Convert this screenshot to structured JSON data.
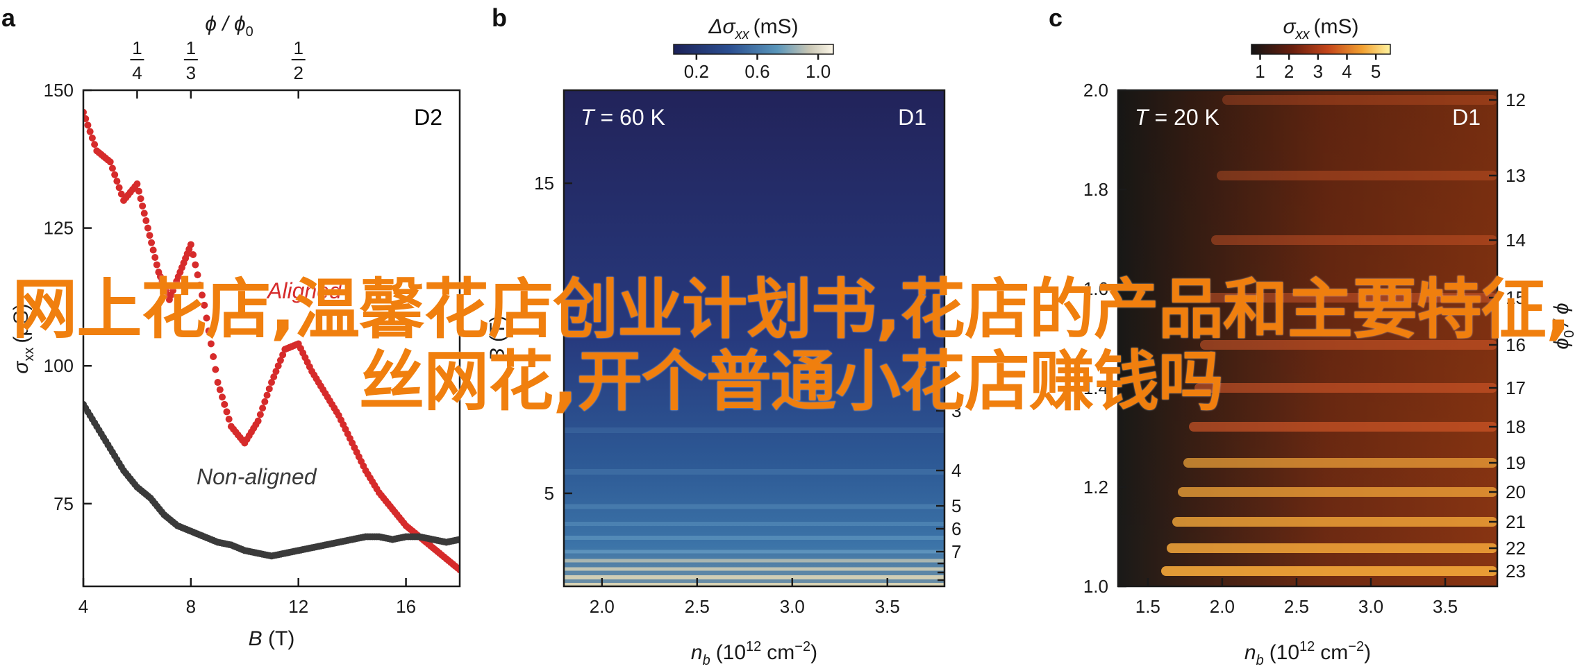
{
  "overlay_text": "网上花店,温馨花店创业计划书,花店的产品和主要特征,丝网花,开个普通小花店赚钱吗",
  "colors": {
    "aligned": "#d62b2b",
    "non_aligned": "#3a3a3a",
    "overlay": "#f07f0e"
  },
  "chart_data": [
    {
      "panel": "a",
      "type": "scatter",
      "inset_label": "D2",
      "xlabel_sym": "B",
      "xlabel_unit": "(T)",
      "ylabel_sym": "σ",
      "ylabel_sub": "xx",
      "ylabel_unit": "(μS)",
      "top_label": "ϕ / ϕ",
      "top_label_sub": "0",
      "xlim": [
        4,
        18
      ],
      "ylim": [
        60,
        150
      ],
      "xticks": [
        4,
        8,
        12,
        16
      ],
      "yticks": [
        75,
        100,
        125,
        150
      ],
      "top_ticks": [
        {
          "num": "1",
          "den": "4",
          "x": 6.0
        },
        {
          "num": "1",
          "den": "3",
          "x": 8.0
        },
        {
          "num": "1",
          "den": "2",
          "x": 12.0
        }
      ],
      "series": [
        {
          "name": "Aligned",
          "x": [
            4.0,
            4.5,
            5.0,
            5.5,
            6.0,
            6.4,
            6.8,
            7.2,
            7.6,
            8.0,
            8.5,
            9.0,
            9.5,
            10.0,
            10.5,
            11.0,
            11.5,
            12.0,
            12.5,
            13.0,
            13.5,
            14.0,
            14.5,
            15.0,
            15.5,
            16.0,
            16.5,
            17.0,
            17.5,
            18.0
          ],
          "y": [
            146,
            139,
            137,
            130,
            133,
            125,
            117,
            112,
            117,
            122,
            111,
            97,
            89,
            86,
            90,
            97,
            103,
            104,
            99,
            95,
            91,
            86,
            81,
            77,
            74,
            71,
            69,
            67,
            65,
            63
          ]
        },
        {
          "name": "Non-aligned",
          "x": [
            4.0,
            4.5,
            5.0,
            5.5,
            6.0,
            6.5,
            7.0,
            7.5,
            8.0,
            8.5,
            9.0,
            9.5,
            10.0,
            10.5,
            11.0,
            11.5,
            12.0,
            12.5,
            13.0,
            13.5,
            14.0,
            14.5,
            15.0,
            15.5,
            16.0,
            16.5,
            17.0,
            17.5,
            18.0
          ],
          "y": [
            93,
            89,
            85,
            81,
            78,
            76,
            73,
            71,
            70,
            69,
            68,
            67.5,
            66.5,
            66,
            65.5,
            66,
            66.5,
            67,
            67.5,
            68,
            68.5,
            69,
            69,
            68.5,
            69,
            69,
            68.5,
            68,
            68.5
          ]
        }
      ]
    },
    {
      "panel": "b",
      "type": "heatmap",
      "inset_label": "D1",
      "temperature_sym": "T",
      "temperature_text": "= 60 K",
      "xlabel_sym": "n",
      "xlabel_sub": "b",
      "xlabel_unit": "(10",
      "xlabel_exp": "12",
      "xlabel_unit2": "cm",
      "xlabel_exp2": "−2",
      "xlabel_close": ")",
      "ylabel_sym": "B",
      "ylabel_unit": "(T)",
      "xlim": [
        1.8,
        3.8
      ],
      "ylim": [
        2,
        18
      ],
      "xticks": [
        2.0,
        2.5,
        3.0,
        3.5
      ],
      "yticks": [
        5,
        15
      ],
      "right_ticks": [
        "3",
        "4",
        "5",
        "6",
        "7"
      ],
      "colorbar_label": "Δσ",
      "colorbar_sub": "xx",
      "colorbar_unit": "(mS)",
      "colorbar_ticks": [
        0.2,
        0.6,
        1.0
      ],
      "colorbar_range": [
        0.05,
        1.1
      ]
    },
    {
      "panel": "c",
      "type": "heatmap",
      "inset_label": "D1",
      "temperature_sym": "T",
      "temperature_text": "= 20 K",
      "xlabel_sym": "n",
      "xlabel_sub": "b",
      "xlabel_unit": "(10",
      "xlabel_exp": "12",
      "xlabel_unit2": "cm",
      "xlabel_exp2": "−2",
      "xlabel_close": ")",
      "ylabel_right_sym": "ϕ",
      "ylabel_right_sub": "0",
      "ylabel_right_sym2": "/ ϕ",
      "xlim": [
        1.3,
        3.85
      ],
      "ylim": [
        1.0,
        2.0
      ],
      "xticks": [
        1.5,
        2.0,
        2.5,
        3.0,
        3.5
      ],
      "yticks": [
        1.0,
        1.2,
        1.4,
        1.6,
        1.8,
        2.0
      ],
      "right_ticks": [
        "12",
        "13",
        "14",
        "15",
        "16",
        "17",
        "18",
        "19",
        "20",
        "21",
        "22",
        "23"
      ],
      "colorbar_label": "σ",
      "colorbar_sub": "xx",
      "colorbar_unit": "(mS)",
      "colorbar_ticks": [
        1,
        2,
        3,
        4,
        5
      ],
      "colorbar_range": [
        0.7,
        5.5
      ]
    }
  ]
}
